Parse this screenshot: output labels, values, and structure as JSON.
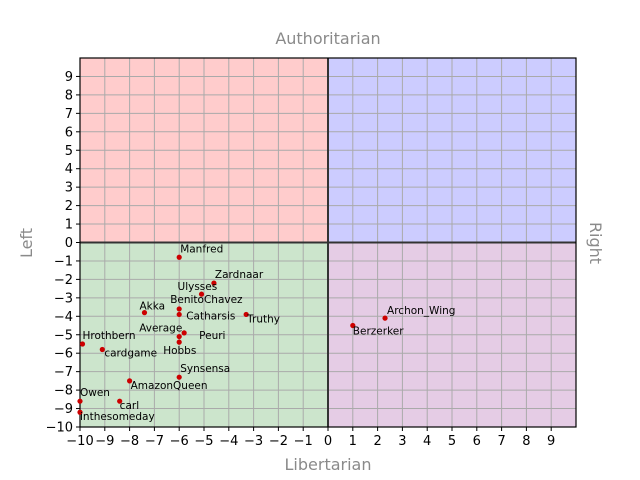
{
  "chart_data": {
    "type": "scatter",
    "title": "",
    "axis_titles": {
      "top": "Authoritarian",
      "bottom": "Libertarian",
      "left": "Left",
      "right": "Right"
    },
    "xlim": [
      -10,
      10
    ],
    "ylim": [
      -10,
      10
    ],
    "x_ticks": [
      -10,
      -9,
      -8,
      -7,
      -6,
      -5,
      -4,
      -3,
      -2,
      -1,
      0,
      1,
      2,
      3,
      4,
      5,
      6,
      7,
      8,
      9
    ],
    "y_ticks": [
      -10,
      -9,
      -8,
      -7,
      -6,
      -5,
      -4,
      -3,
      -2,
      -1,
      0,
      1,
      2,
      3,
      4,
      5,
      6,
      7,
      8,
      9
    ],
    "grid": true,
    "quadrant_colors": {
      "top_left": "#ffcccc",
      "top_right": "#ccccff",
      "bottom_left": "#cce5cc",
      "bottom_right": "#e5cce5"
    },
    "point_color": "#cc0000",
    "points": [
      {
        "name": "Manfred",
        "x": -6.0,
        "y": -0.8
      },
      {
        "name": "Zardnaar",
        "x": -4.6,
        "y": -2.2
      },
      {
        "name": "Ulysses",
        "x": -5.1,
        "y": -2.8
      },
      {
        "name": "BenitoChavez",
        "x": -6.0,
        "y": -3.6
      },
      {
        "name": "Akka",
        "x": -7.4,
        "y": -3.8
      },
      {
        "name": "Catharsis",
        "x": -6.0,
        "y": -3.9
      },
      {
        "name": "Truthy",
        "x": -3.3,
        "y": -3.9
      },
      {
        "name": "Average",
        "x": -6.0,
        "y": -5.1
      },
      {
        "name": "Peuri",
        "x": -5.8,
        "y": -4.9
      },
      {
        "name": "Hobbs",
        "x": -6.0,
        "y": -5.4
      },
      {
        "name": "Hrothbern",
        "x": -9.9,
        "y": -5.5
      },
      {
        "name": "cardgame",
        "x": -9.1,
        "y": -5.8
      },
      {
        "name": "Synsensa",
        "x": -6.0,
        "y": -7.3
      },
      {
        "name": "AmazonQueen",
        "x": -8.0,
        "y": -7.5
      },
      {
        "name": "Owen",
        "x": -10.0,
        "y": -8.6
      },
      {
        "name": "carl",
        "x": -8.4,
        "y": -8.6
      },
      {
        "name": "inthesomeday",
        "x": -10.0,
        "y": -9.2
      },
      {
        "name": "Archon_Wing",
        "x": 2.3,
        "y": -4.1
      },
      {
        "name": "Berzerker",
        "x": 1.0,
        "y": -4.5
      }
    ]
  }
}
